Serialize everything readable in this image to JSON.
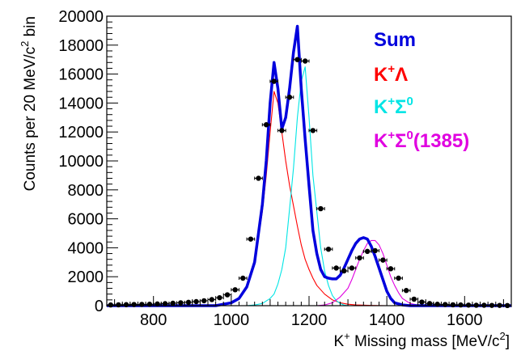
{
  "chart_data": {
    "type": "line",
    "xlabel_main": "K",
    "xlabel_sup": "+",
    "xlabel_rest": " Missing mass [MeV/c",
    "xlabel_sup2": "2",
    "xlabel_end": "]",
    "ylabel_main": "Counts per 20 MeV/c",
    "ylabel_sup": "2",
    "ylabel_end": " bin",
    "xlim": [
      680,
      1720
    ],
    "ylim": [
      0,
      20000
    ],
    "x_ticks": [
      800,
      1000,
      1200,
      1400,
      1600
    ],
    "x_tick_labels": [
      "800",
      "1000",
      "1200",
      "1400",
      "1600"
    ],
    "y_ticks": [
      0,
      2000,
      4000,
      6000,
      8000,
      10000,
      12000,
      14000,
      16000,
      18000,
      20000
    ],
    "y_tick_labels": [
      "0",
      "2000",
      "4000",
      "6000",
      "8000",
      "10000",
      "12000",
      "14000",
      "16000",
      "18000",
      "20000"
    ],
    "legend": {
      "placement": "top-right",
      "entries": [
        {
          "main": "Sum",
          "sup": "",
          "main2": "",
          "sup2": "",
          "rest": "",
          "color": "#0000dd"
        },
        {
          "main": "K",
          "sup": "+",
          "main2": "Λ",
          "sup2": "",
          "rest": "",
          "color": "#ff0000"
        },
        {
          "main": "K",
          "sup": "+",
          "main2": "Σ",
          "sup2": "0",
          "rest": "",
          "color": "#00e5e5"
        },
        {
          "main": "K",
          "sup": "+",
          "main2": "Σ",
          "sup2": "0",
          "rest": "(1385)",
          "color": "#e000e0"
        }
      ]
    },
    "data_points": {
      "name": "",
      "x": [
        690,
        710,
        730,
        750,
        770,
        790,
        810,
        830,
        850,
        870,
        890,
        910,
        930,
        950,
        970,
        990,
        1010,
        1030,
        1050,
        1070,
        1090,
        1110,
        1130,
        1150,
        1170,
        1190,
        1210,
        1230,
        1250,
        1270,
        1290,
        1310,
        1330,
        1350,
        1370,
        1390,
        1410,
        1430,
        1450,
        1470,
        1490,
        1510,
        1530,
        1550,
        1570,
        1590,
        1610,
        1630,
        1650,
        1670,
        1690,
        1710
      ],
      "y": [
        50,
        60,
        70,
        80,
        90,
        100,
        120,
        140,
        170,
        200,
        230,
        280,
        340,
        420,
        550,
        750,
        1100,
        1900,
        4600,
        8800,
        12500,
        15500,
        12100,
        14400,
        17000,
        16900,
        12100,
        6700,
        3900,
        2600,
        2400,
        2600,
        3300,
        3750,
        3800,
        3150,
        2550,
        1900,
        1050,
        450,
        250,
        150,
        100,
        80,
        60,
        50,
        40,
        30,
        30,
        20,
        20,
        10
      ],
      "color": "#000000"
    },
    "series": [
      {
        "key": "sum",
        "color": "#0000dd",
        "x": [
          680,
          700,
          720,
          740,
          760,
          780,
          800,
          820,
          840,
          860,
          880,
          900,
          920,
          940,
          960,
          980,
          1000,
          1020,
          1040,
          1060,
          1080,
          1090,
          1100,
          1110,
          1120,
          1130,
          1140,
          1150,
          1160,
          1170,
          1180,
          1190,
          1200,
          1210,
          1220,
          1230,
          1240,
          1250,
          1260,
          1270,
          1280,
          1290,
          1300,
          1310,
          1320,
          1330,
          1340,
          1350,
          1360,
          1370,
          1380,
          1390,
          1400,
          1410,
          1420,
          1440,
          1460,
          1480,
          1500,
          1520,
          1540,
          1560,
          1580,
          1600,
          1620,
          1640,
          1660,
          1680,
          1700,
          1720
        ],
        "y": [
          0,
          0,
          0,
          0,
          0,
          0,
          0,
          0,
          0,
          0,
          0,
          0,
          0,
          0,
          0,
          100,
          200,
          500,
          1300,
          3000,
          7000,
          10000,
          14000,
          16800,
          15000,
          12200,
          13000,
          15000,
          17500,
          19300,
          15000,
          11500,
          8300,
          5200,
          3600,
          2500,
          2000,
          1900,
          1850,
          1850,
          2100,
          2600,
          3200,
          3800,
          4300,
          4600,
          4700,
          4600,
          4100,
          3400,
          2600,
          1800,
          1000,
          500,
          200,
          50,
          0,
          0,
          0,
          0,
          0,
          0,
          0,
          0,
          0,
          0,
          0,
          0,
          0,
          0
        ]
      },
      {
        "key": "klambda",
        "color": "#ff0000",
        "x": [
          680,
          900,
          940,
          980,
          1000,
          1020,
          1040,
          1060,
          1080,
          1090,
          1100,
          1110,
          1120,
          1130,
          1140,
          1150,
          1160,
          1170,
          1180,
          1190,
          1200,
          1210,
          1220,
          1240,
          1260,
          1280,
          1300,
          1320,
          1360,
          1400,
          1450,
          1500,
          1720
        ],
        "y": [
          0,
          0,
          30,
          100,
          200,
          500,
          1200,
          3000,
          6500,
          9000,
          12000,
          14800,
          14000,
          12000,
          10000,
          8300,
          6900,
          5500,
          4200,
          3200,
          2500,
          1900,
          1400,
          800,
          400,
          200,
          100,
          50,
          20,
          0,
          0,
          0,
          0
        ]
      },
      {
        "key": "ksigma0",
        "color": "#00e5e5",
        "x": [
          680,
          1040,
          1060,
          1080,
          1100,
          1110,
          1120,
          1130,
          1140,
          1150,
          1160,
          1170,
          1180,
          1190,
          1200,
          1210,
          1220,
          1230,
          1240,
          1250,
          1260,
          1270,
          1280,
          1290,
          1300,
          1320,
          1340,
          1380,
          1720
        ],
        "y": [
          0,
          0,
          50,
          150,
          500,
          800,
          1500,
          2500,
          4000,
          6700,
          9500,
          13000,
          15500,
          16500,
          13000,
          9000,
          6500,
          4000,
          2400,
          1400,
          700,
          350,
          150,
          50,
          0,
          0,
          0,
          0,
          0
        ]
      },
      {
        "key": "ksigma1385",
        "color": "#e000e0",
        "x": [
          680,
          1220,
          1240,
          1260,
          1280,
          1300,
          1310,
          1320,
          1330,
          1340,
          1350,
          1360,
          1370,
          1380,
          1390,
          1400,
          1410,
          1420,
          1430,
          1440,
          1460,
          1480,
          1500,
          1720
        ],
        "y": [
          0,
          0,
          50,
          200,
          600,
          1200,
          1800,
          2500,
          3200,
          3800,
          4300,
          4500,
          4500,
          4200,
          3600,
          2800,
          2000,
          1400,
          900,
          500,
          150,
          50,
          0,
          0
        ]
      }
    ]
  }
}
